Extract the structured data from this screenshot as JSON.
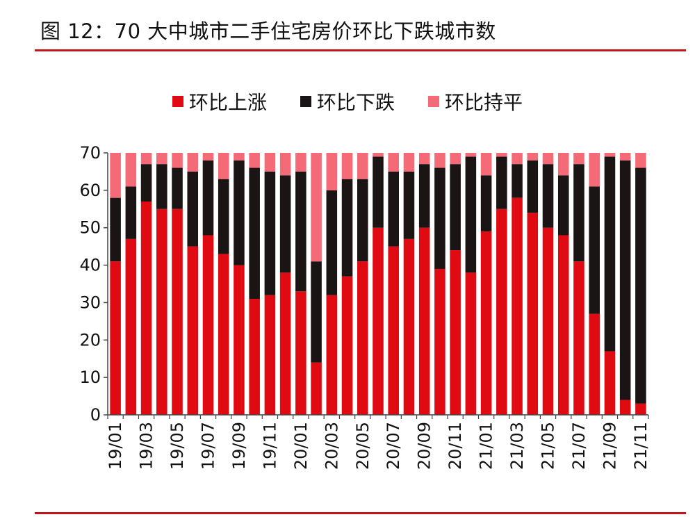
{
  "title": "图 12：70 大中城市二手住宅房价环比下跌城市数",
  "colors": {
    "rule": "#c0151b",
    "up": "#e00b12",
    "down": "#1a1414",
    "flat": "#f46a76"
  },
  "chart_data": {
    "type": "bar",
    "stacked": true,
    "ylim": [
      0,
      70
    ],
    "yticks": [
      0,
      10,
      20,
      30,
      40,
      50,
      60,
      70
    ],
    "legend_position": "top",
    "categories": [
      "19/01",
      "19/02",
      "19/03",
      "19/04",
      "19/05",
      "19/06",
      "19/07",
      "19/08",
      "19/09",
      "19/10",
      "19/11",
      "19/12",
      "20/01",
      "20/02",
      "20/03",
      "20/04",
      "20/05",
      "20/06",
      "20/07",
      "20/08",
      "20/09",
      "20/10",
      "20/11",
      "20/12",
      "21/01",
      "21/02",
      "21/03",
      "21/04",
      "21/05",
      "21/06",
      "21/07",
      "21/08",
      "21/09",
      "21/10",
      "21/11"
    ],
    "tick_labels": [
      "19/01",
      "",
      "19/03",
      "",
      "19/05",
      "",
      "19/07",
      "",
      "19/09",
      "",
      "19/11",
      "",
      "20/01",
      "",
      "20/03",
      "",
      "20/05",
      "",
      "20/07",
      "",
      "20/09",
      "",
      "20/11",
      "",
      "21/01",
      "",
      "21/03",
      "",
      "21/05",
      "",
      "21/07",
      "",
      "21/09",
      "",
      "21/11"
    ],
    "series": [
      {
        "name": "环比上涨",
        "color": "#e00b12",
        "values": [
          41,
          47,
          57,
          55,
          55,
          45,
          48,
          43,
          40,
          31,
          32,
          38,
          33,
          14,
          32,
          37,
          41,
          50,
          45,
          47,
          50,
          39,
          44,
          38,
          49,
          55,
          58,
          54,
          50,
          48,
          41,
          27,
          17,
          4,
          3
        ]
      },
      {
        "name": "环比下跌",
        "color": "#1a1414",
        "values": [
          17,
          14,
          10,
          12,
          11,
          20,
          20,
          20,
          28,
          35,
          33,
          26,
          32,
          27,
          28,
          26,
          22,
          19,
          20,
          18,
          17,
          27,
          23,
          31,
          15,
          14,
          9,
          14,
          17,
          16,
          26,
          34,
          52,
          64,
          63
        ]
      },
      {
        "name": "环比持平",
        "color": "#f46a76",
        "values": [
          12,
          9,
          3,
          3,
          4,
          5,
          2,
          7,
          2,
          4,
          5,
          6,
          5,
          29,
          10,
          7,
          7,
          1,
          5,
          5,
          3,
          4,
          3,
          1,
          6,
          1,
          3,
          2,
          3,
          6,
          3,
          9,
          1,
          2,
          4
        ]
      }
    ]
  }
}
